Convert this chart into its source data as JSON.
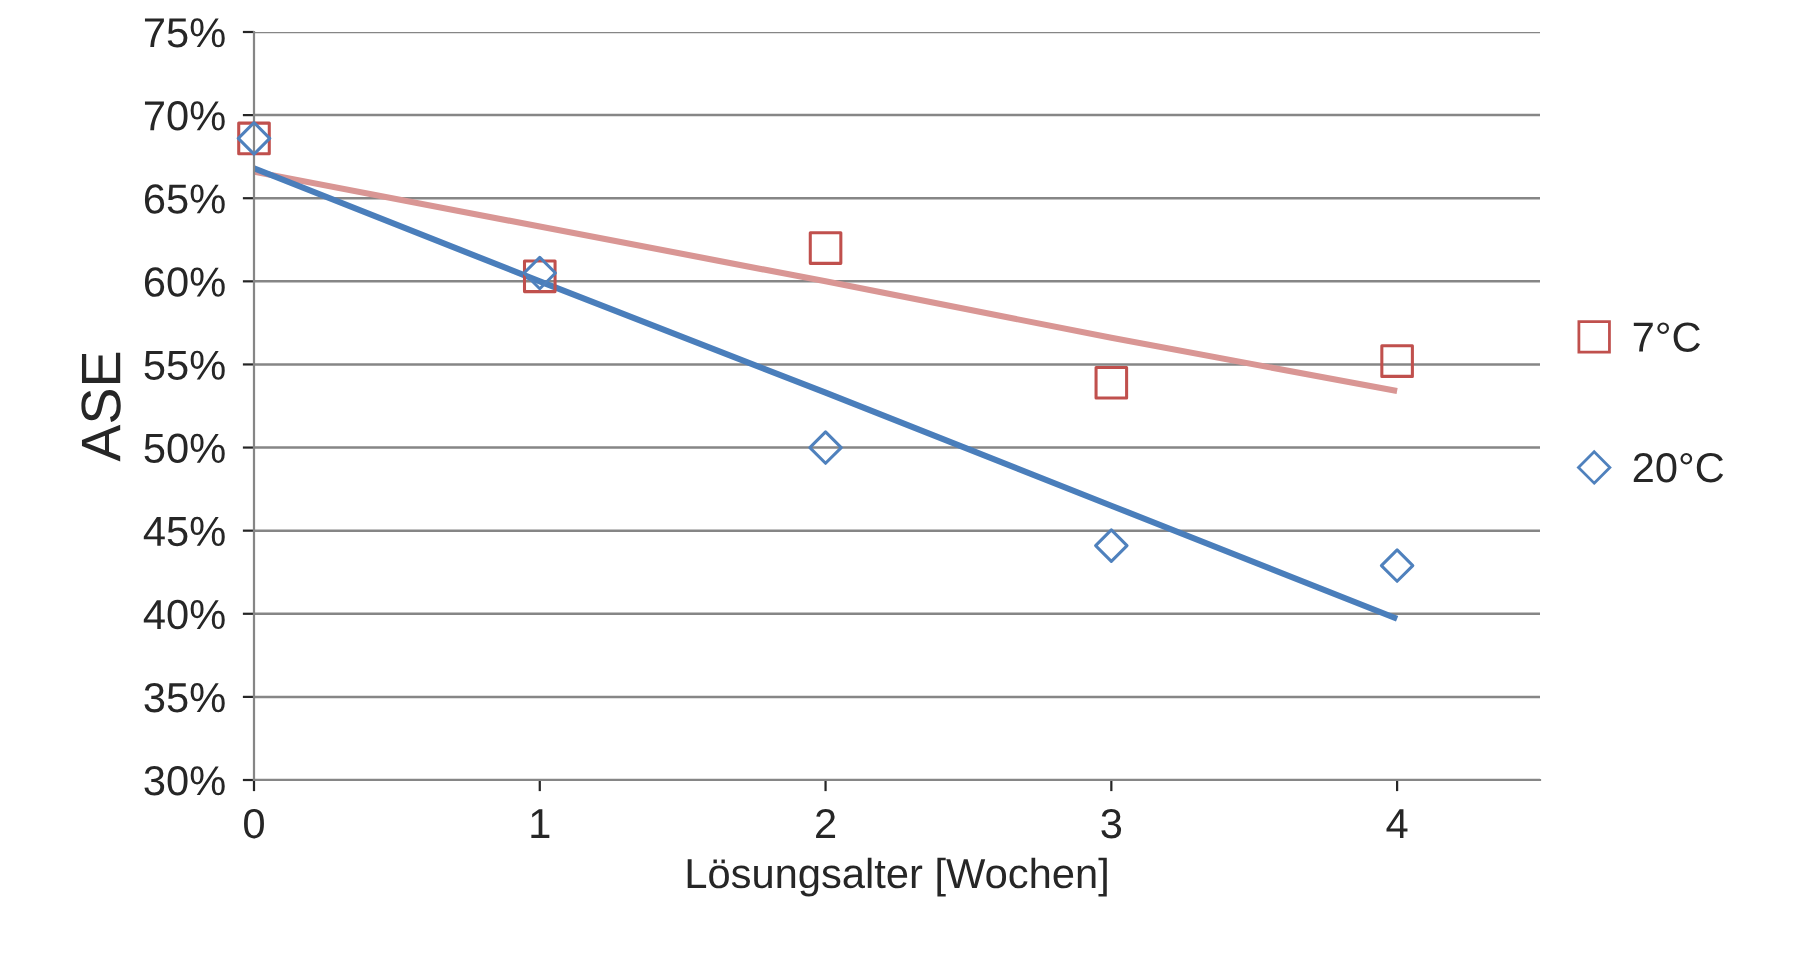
{
  "chart_data": {
    "type": "scatter",
    "xlabel": "Lösungsalter [Wochen]",
    "ylabel": "ASE",
    "x": [
      0,
      1,
      2,
      3,
      4
    ],
    "series": [
      {
        "name": "7°C",
        "color": "#c0504d",
        "marker": "square",
        "values": [
          68.6,
          60.3,
          62.0,
          53.9,
          55.2
        ]
      },
      {
        "name": "20°C",
        "color": "#4f81bd",
        "marker": "diamond",
        "values": [
          68.6,
          60.5,
          50.0,
          44.1,
          42.9
        ]
      },
      {
        "type": "line",
        "color": "#d99694",
        "values": [
          66.6,
          63.3,
          60.0,
          56.6,
          53.4
        ],
        "marker": "none"
      },
      {
        "type": "line",
        "color": "#4a7ebb",
        "values": [
          66.8,
          60.0,
          53.3,
          46.5,
          39.7
        ],
        "marker": "none"
      }
    ],
    "xlim": [
      0,
      4.5
    ],
    "xticks": [
      0,
      1,
      2,
      3,
      4
    ],
    "ylim": [
      30,
      75
    ],
    "yticks": [
      {
        "value": 30,
        "label": "30%"
      },
      {
        "value": 35,
        "label": "35%"
      },
      {
        "value": 40,
        "label": "40%"
      },
      {
        "value": 45,
        "label": "45%"
      },
      {
        "value": 50,
        "label": "50%"
      },
      {
        "value": 55,
        "label": "55%"
      },
      {
        "value": 60,
        "label": "60%"
      },
      {
        "value": 65,
        "label": "65%"
      },
      {
        "value": 70,
        "label": "70%"
      },
      {
        "value": 75,
        "label": "75%"
      }
    ],
    "grid": "y",
    "legend": "right"
  }
}
